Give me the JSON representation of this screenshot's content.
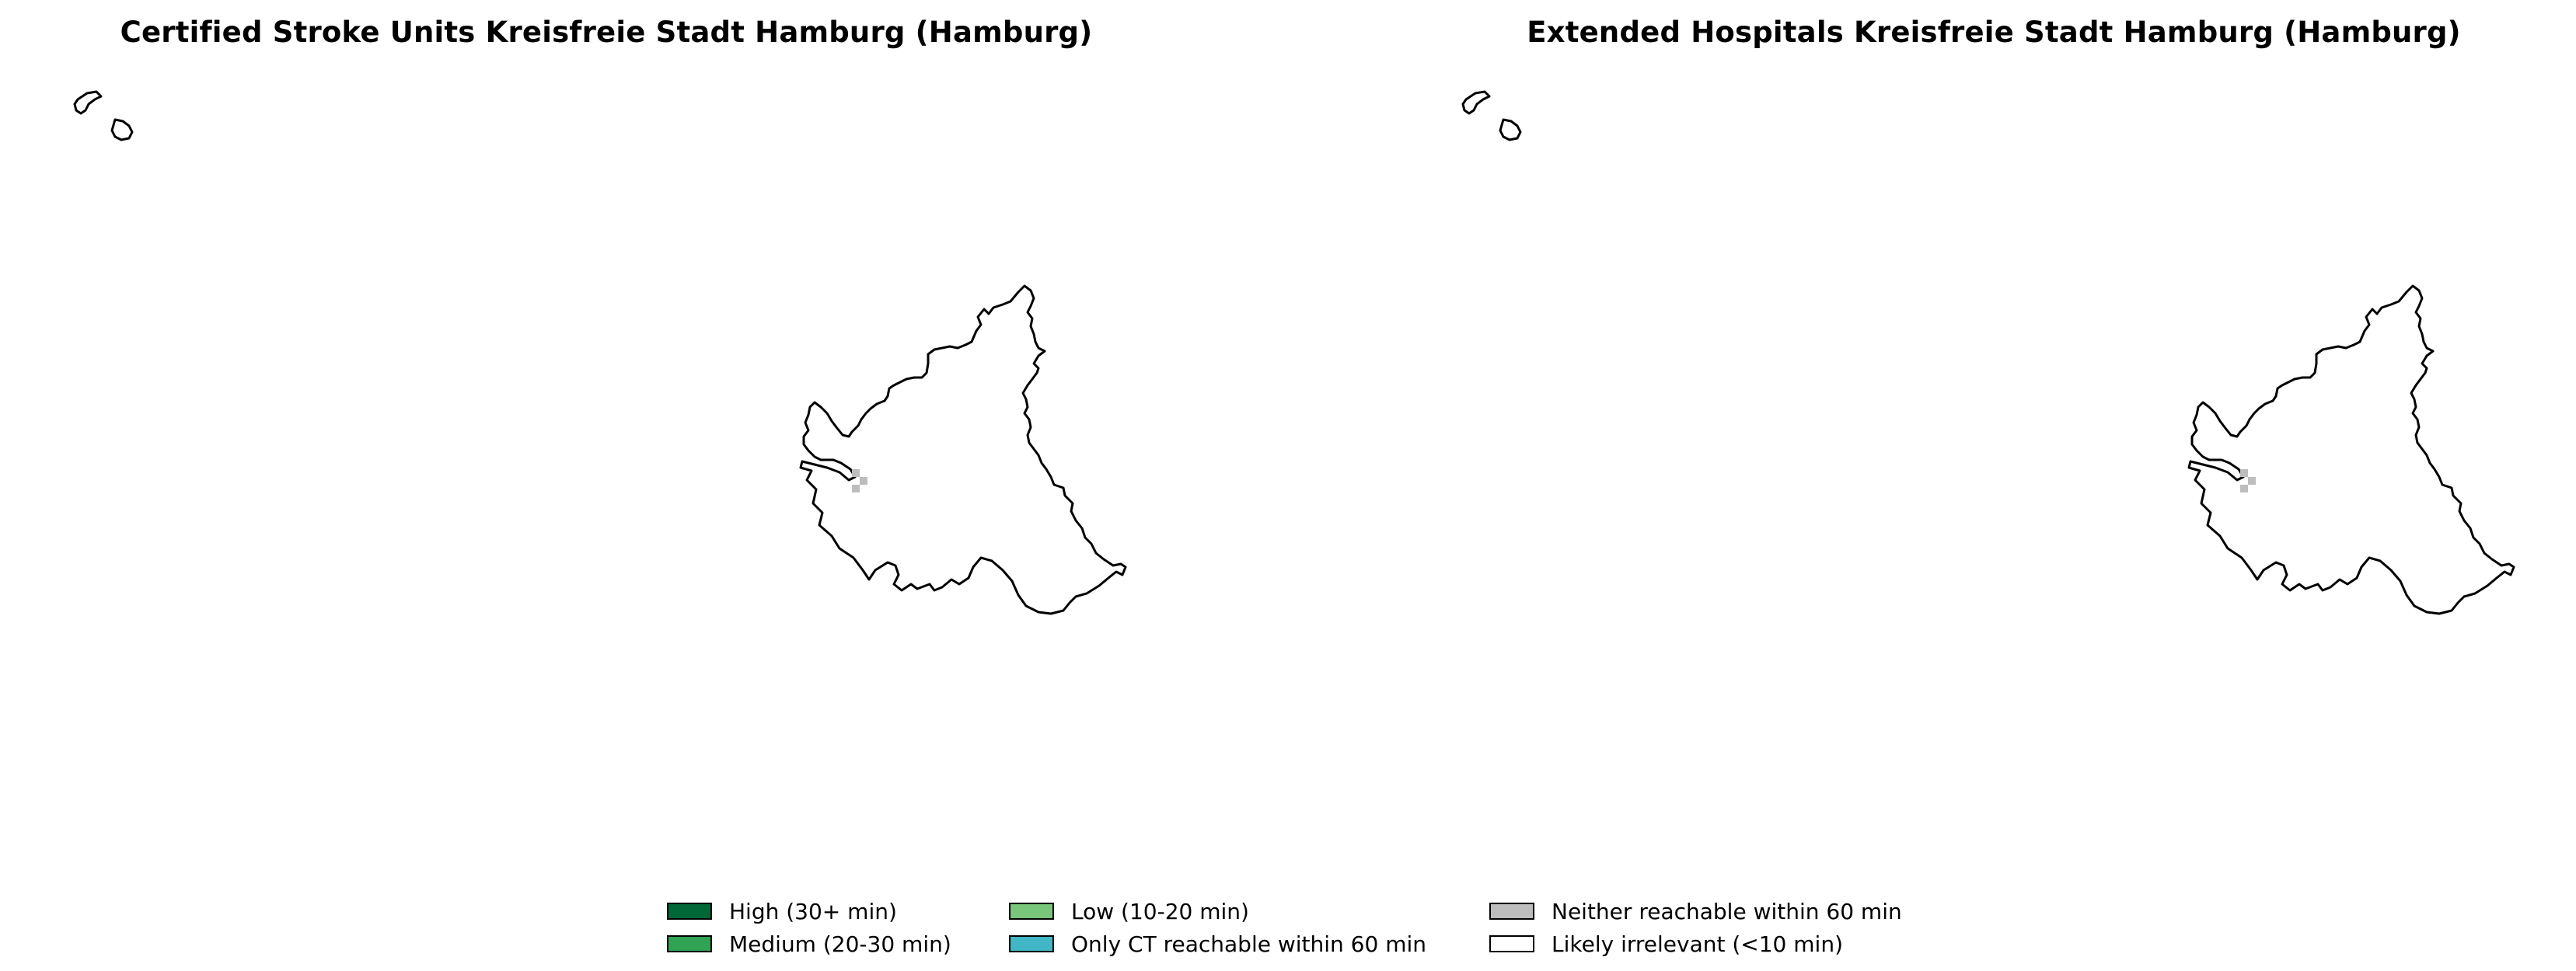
{
  "panels": [
    {
      "title": "Certified Stroke Units Kreisfreie Stadt Hamburg (Hamburg)"
    },
    {
      "title": "Extended Hospitals Kreisfreie Stadt Hamburg (Hamburg)"
    }
  ],
  "map": {
    "region_fill": "#ffffff",
    "outline_color": "#000000",
    "marker_color": "#bdbdbd"
  },
  "legend": {
    "items": [
      {
        "label": "High (30+ min)",
        "color": "#006837"
      },
      {
        "label": "Medium (20-30 min)",
        "color": "#31a354"
      },
      {
        "label": "Low (10-20 min)",
        "color": "#78c679"
      },
      {
        "label": "Only CT reachable within 60 min",
        "color": "#41b6c4"
      },
      {
        "label": "Neither reachable within 60 min",
        "color": "#bdbdbd"
      },
      {
        "label": "Likely irrelevant (<10 min)",
        "color": "#ffffff"
      }
    ]
  }
}
